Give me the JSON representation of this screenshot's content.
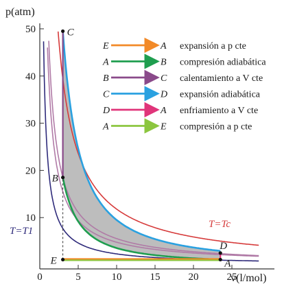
{
  "axes": {
    "x_label": "v(l/mol)",
    "y_label": "p(atm)",
    "x_ticks": [
      "0",
      "5",
      "10",
      "15",
      "20",
      "25"
    ],
    "y_ticks": [
      "10",
      "20",
      "30",
      "40",
      "50"
    ],
    "x_range": [
      0,
      30
    ],
    "y_range": [
      0,
      50
    ]
  },
  "points": [
    {
      "id": "A",
      "v": 23.5,
      "p": 1.1
    },
    {
      "id": "B",
      "v": 3.0,
      "p": 18.5
    },
    {
      "id": "C",
      "v": 3.0,
      "p": 49.5
    },
    {
      "id": "D",
      "v": 23.5,
      "p": 2.5
    },
    {
      "id": "E",
      "v": 3.0,
      "p": 1.1
    }
  ],
  "labels": {
    "isotherm_c": "T=Tc",
    "isotherm_low": "T=T1"
  },
  "legend": [
    {
      "from": "E",
      "to": "A",
      "text": "expansión a p cte",
      "color": "#f28a28"
    },
    {
      "from": "A",
      "to": "B",
      "text": "compresión adiabática",
      "color": "#1f9e4f"
    },
    {
      "from": "B",
      "to": "C",
      "text": "calentamiento a V cte",
      "color": "#8a4a8a"
    },
    {
      "from": "C",
      "to": "D",
      "text": "expansión adiabática",
      "color": "#2aa1e0"
    },
    {
      "from": "D",
      "to": "A",
      "text": "enfriamiento a V cte",
      "color": "#e0357a"
    },
    {
      "from": "A",
      "to": "E",
      "text": "compresión a p cte",
      "color": "#8cc63f"
    }
  ],
  "colors": {
    "isotherm_c": "#d63a3a",
    "isotherm_low": "#2e2a7a",
    "isotherm_mid": "#b07aa6",
    "shading": "#bdbdbd"
  }
}
